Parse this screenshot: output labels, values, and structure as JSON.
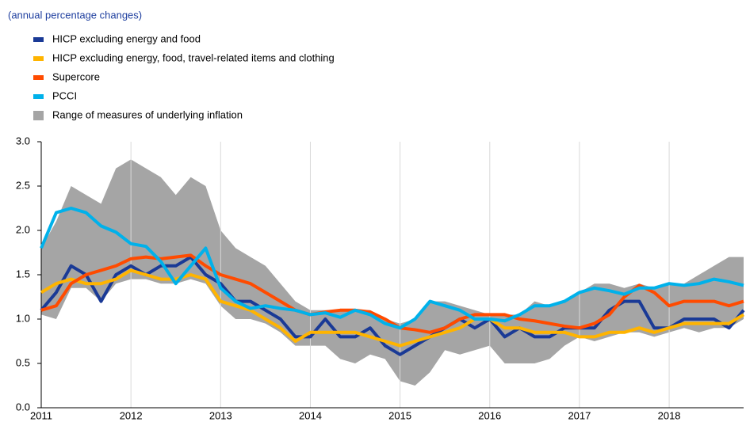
{
  "chart_data": {
    "type": "line",
    "subtitle": "(annual percentage changes)",
    "x": [
      2011,
      2011.167,
      2011.333,
      2011.5,
      2011.667,
      2011.833,
      2012,
      2012.167,
      2012.333,
      2012.5,
      2012.667,
      2012.833,
      2013,
      2013.167,
      2013.333,
      2013.5,
      2013.667,
      2013.833,
      2014,
      2014.167,
      2014.333,
      2014.5,
      2014.667,
      2014.833,
      2015,
      2015.167,
      2015.333,
      2015.5,
      2015.667,
      2015.833,
      2016,
      2016.167,
      2016.333,
      2016.5,
      2016.667,
      2016.833,
      2017,
      2017.167,
      2017.333,
      2017.5,
      2017.667,
      2017.833,
      2018,
      2018.167,
      2018.333,
      2018.5,
      2018.667,
      2018.83
    ],
    "series": [
      {
        "name": "HICP excluding energy and food",
        "color": "#1a3a96",
        "values": [
          1.1,
          1.3,
          1.6,
          1.5,
          1.2,
          1.5,
          1.6,
          1.5,
          1.6,
          1.6,
          1.7,
          1.5,
          1.4,
          1.2,
          1.2,
          1.1,
          1.0,
          0.8,
          0.8,
          1.0,
          0.8,
          0.8,
          0.9,
          0.7,
          0.6,
          0.7,
          0.8,
          0.9,
          1.0,
          0.9,
          1.0,
          0.8,
          0.9,
          0.8,
          0.8,
          0.9,
          0.9,
          0.9,
          1.1,
          1.2,
          1.2,
          0.9,
          0.9,
          1.0,
          1.0,
          1.0,
          0.9,
          1.1
        ]
      },
      {
        "name": "HICP excluding energy, food, travel-related items and clothing",
        "color": "#ffb400",
        "values": [
          1.3,
          1.4,
          1.45,
          1.4,
          1.4,
          1.45,
          1.55,
          1.5,
          1.45,
          1.45,
          1.5,
          1.45,
          1.2,
          1.15,
          1.1,
          1.0,
          0.9,
          0.75,
          0.85,
          0.85,
          0.85,
          0.85,
          0.8,
          0.75,
          0.7,
          0.75,
          0.8,
          0.85,
          0.9,
          1.0,
          1.0,
          0.9,
          0.9,
          0.85,
          0.85,
          0.85,
          0.8,
          0.8,
          0.85,
          0.85,
          0.9,
          0.85,
          0.9,
          0.95,
          0.95,
          0.95,
          0.95,
          1.05
        ]
      },
      {
        "name": "Supercore",
        "color": "#ff4b00",
        "values": [
          1.1,
          1.15,
          1.4,
          1.5,
          1.55,
          1.6,
          1.68,
          1.7,
          1.68,
          1.7,
          1.72,
          1.6,
          1.5,
          1.45,
          1.4,
          1.3,
          1.2,
          1.1,
          1.05,
          1.08,
          1.1,
          1.1,
          1.08,
          1.0,
          0.9,
          0.88,
          0.85,
          0.9,
          1.0,
          1.05,
          1.05,
          1.05,
          1.0,
          0.98,
          0.95,
          0.92,
          0.9,
          0.95,
          1.05,
          1.25,
          1.38,
          1.3,
          1.15,
          1.2,
          1.2,
          1.2,
          1.15,
          1.2
        ]
      },
      {
        "name": "PCCI",
        "color": "#00b1ea",
        "values": [
          1.8,
          2.2,
          2.25,
          2.2,
          2.05,
          1.98,
          1.85,
          1.82,
          1.65,
          1.4,
          1.6,
          1.8,
          1.35,
          1.2,
          1.12,
          1.15,
          1.12,
          1.1,
          1.05,
          1.07,
          1.02,
          1.1,
          1.05,
          0.95,
          0.9,
          1.0,
          1.2,
          1.15,
          1.1,
          1.0,
          1.0,
          0.98,
          1.05,
          1.15,
          1.15,
          1.2,
          1.3,
          1.35,
          1.32,
          1.28,
          1.35,
          1.35,
          1.4,
          1.38,
          1.4,
          1.45,
          1.42,
          1.38
        ]
      }
    ],
    "range": {
      "name": "Range of measures of underlying inflation",
      "color": "#a5a5a5",
      "low": [
        1.05,
        1.0,
        1.35,
        1.35,
        1.2,
        1.4,
        1.45,
        1.45,
        1.4,
        1.4,
        1.45,
        1.4,
        1.15,
        1.0,
        1.0,
        0.95,
        0.85,
        0.7,
        0.7,
        0.7,
        0.55,
        0.5,
        0.6,
        0.55,
        0.3,
        0.25,
        0.4,
        0.65,
        0.6,
        0.65,
        0.7,
        0.5,
        0.5,
        0.5,
        0.55,
        0.7,
        0.8,
        0.75,
        0.8,
        0.85,
        0.85,
        0.8,
        0.85,
        0.9,
        0.85,
        0.9,
        0.9,
        1.0
      ],
      "high": [
        1.8,
        2.1,
        2.5,
        2.4,
        2.3,
        2.7,
        2.8,
        2.7,
        2.6,
        2.4,
        2.6,
        2.5,
        2.0,
        1.8,
        1.7,
        1.6,
        1.4,
        1.2,
        1.1,
        1.1,
        1.1,
        1.1,
        1.1,
        1.0,
        0.95,
        1.0,
        1.2,
        1.2,
        1.15,
        1.1,
        1.05,
        1.05,
        1.05,
        1.2,
        1.15,
        1.2,
        1.3,
        1.4,
        1.4,
        1.35,
        1.4,
        1.35,
        1.4,
        1.4,
        1.5,
        1.6,
        1.7,
        1.7
      ]
    },
    "xlim": [
      2011,
      2018.83
    ],
    "xticks": [
      2011,
      2012,
      2013,
      2014,
      2015,
      2016,
      2017,
      2018
    ],
    "ylim": [
      0,
      3
    ],
    "yticks": [
      {
        "value": 0,
        "label": "0.0"
      },
      0.5,
      {
        "value": 1,
        "label": "1.0"
      },
      1.5,
      {
        "value": 2,
        "label": "2.0"
      },
      2.5,
      {
        "value": 3,
        "label": "3.0"
      }
    ],
    "grid": true
  }
}
